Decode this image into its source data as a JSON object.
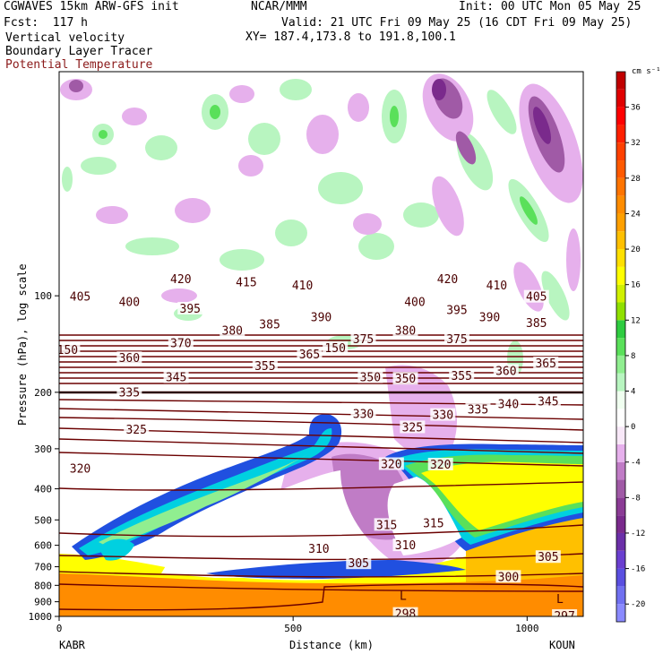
{
  "header": {
    "model": "CGWAVES 15km ARW-GFS init",
    "center": "NCAR/MMM",
    "init": "Init: 00 UTC Mon 05 May 25",
    "fcst": "Fcst:  117 h",
    "valid": "Valid: 21 UTC Fri 09 May 25 (16 CDT Fri 09 May 25)",
    "field1": "Vertical velocity",
    "field2": "Boundary Layer Tracer",
    "field3": "Potential Temperature",
    "field3_color": "#8b1a1a",
    "xy": "XY= 187.4,173.8 to 191.8,100.1"
  },
  "chart_data": {
    "type": "heatmap",
    "xlabel": "Distance (km)",
    "ylabel": "Pressure (hPa), log scale",
    "xlim": [
      0,
      1120
    ],
    "ylim": [
      1000,
      20
    ],
    "y_scale": "log",
    "x_ticks": [
      {
        "value": 0,
        "label": "0"
      },
      {
        "value": 500,
        "label": "500"
      },
      {
        "value": 1000,
        "label": "1000"
      }
    ],
    "y_ticks": [
      {
        "value": 1000,
        "label": "1000"
      },
      {
        "value": 900,
        "label": "900"
      },
      {
        "value": 800,
        "label": "800"
      },
      {
        "value": 700,
        "label": "700"
      },
      {
        "value": 600,
        "label": "600"
      },
      {
        "value": 500,
        "label": "500"
      },
      {
        "value": 400,
        "label": "400"
      },
      {
        "value": 300,
        "label": "300"
      },
      {
        "value": 200,
        "label": "200"
      },
      {
        "value": 100,
        "label": "100"
      }
    ],
    "x_endpoints": {
      "left": "KABR",
      "right": "KOUN"
    },
    "colorbar": {
      "units": "cm s⁻¹",
      "levels": [
        -22,
        -20,
        -18,
        -16,
        -14,
        -12,
        -10,
        -8,
        -6,
        -4,
        -2,
        0,
        2,
        4,
        6,
        8,
        10,
        12,
        14,
        16,
        18,
        20,
        22,
        24,
        26,
        28,
        30,
        32,
        34,
        36,
        38,
        40
      ],
      "labels": [
        "-20",
        "-16",
        "-12",
        "-8",
        "-4",
        "0",
        "4",
        "8",
        "12",
        "16",
        "20",
        "24",
        "28",
        "32",
        "36"
      ],
      "label_values": [
        -20,
        -16,
        -12,
        -8,
        -4,
        0,
        4,
        8,
        12,
        16,
        20,
        24,
        28,
        32,
        36
      ],
      "colors": [
        "#8a8aff",
        "#7070f0",
        "#5a4fe0",
        "#6a3fd0",
        "#6b2fa8",
        "#7a2a8c",
        "#8b3b95",
        "#a05aa6",
        "#c07cc6",
        "#e6b0ec",
        "#f8e8f8",
        "#ffffff",
        "#f0fff0",
        "#b8f5c0",
        "#90ee90",
        "#5ae05a",
        "#2ecc40",
        "#90e000",
        "#d0f000",
        "#ffff00",
        "#ffe000",
        "#ffc000",
        "#ffa000",
        "#ff8c00",
        "#ff7400",
        "#ff5a00",
        "#ff4000",
        "#ff2000",
        "#ff0000",
        "#e00000",
        "#c00000"
      ]
    },
    "theta_contours_K": [
      297,
      298,
      300,
      305,
      310,
      315,
      320,
      325,
      330,
      335,
      340,
      345,
      350,
      355,
      360,
      365,
      370,
      375,
      380,
      385,
      390,
      395,
      400,
      405,
      410,
      415,
      420
    ],
    "theta_labels": [
      {
        "text": "420",
        "x": 260,
        "p": 89
      },
      {
        "text": "415",
        "x": 400,
        "p": 91
      },
      {
        "text": "410",
        "x": 520,
        "p": 93
      },
      {
        "text": "420",
        "x": 830,
        "p": 89
      },
      {
        "text": "410",
        "x": 935,
        "p": 93
      },
      {
        "text": "405",
        "x": 45,
        "p": 101
      },
      {
        "text": "400",
        "x": 150,
        "p": 105
      },
      {
        "text": "395",
        "x": 280,
        "p": 110
      },
      {
        "text": "400",
        "x": 760,
        "p": 105
      },
      {
        "text": "395",
        "x": 850,
        "p": 111
      },
      {
        "text": "405",
        "x": 1020,
        "p": 101
      },
      {
        "text": "390",
        "x": 920,
        "p": 117
      },
      {
        "text": "385",
        "x": 1020,
        "p": 122
      },
      {
        "text": "390",
        "x": 560,
        "p": 117
      },
      {
        "text": "385",
        "x": 450,
        "p": 123
      },
      {
        "text": "380",
        "x": 370,
        "p": 129
      },
      {
        "text": "380",
        "x": 740,
        "p": 129
      },
      {
        "text": "375",
        "x": 650,
        "p": 137
      },
      {
        "text": "375",
        "x": 850,
        "p": 137
      },
      {
        "text": "370",
        "x": 260,
        "p": 141
      },
      {
        "text": "150",
        "x": 18,
        "p": 148
      },
      {
        "text": "365",
        "x": 1040,
        "p": 163
      },
      {
        "text": "365",
        "x": 535,
        "p": 153
      },
      {
        "text": "150",
        "x": 590,
        "p": 146
      },
      {
        "text": "360",
        "x": 150,
        "p": 157
      },
      {
        "text": "360",
        "x": 955,
        "p": 172
      },
      {
        "text": "355",
        "x": 440,
        "p": 166
      },
      {
        "text": "355",
        "x": 860,
        "p": 178
      },
      {
        "text": "345",
        "x": 250,
        "p": 180
      },
      {
        "text": "350",
        "x": 665,
        "p": 180
      },
      {
        "text": "350",
        "x": 740,
        "p": 182
      },
      {
        "text": "345",
        "x": 1045,
        "p": 214
      },
      {
        "text": "340",
        "x": 960,
        "p": 218
      },
      {
        "text": "335",
        "x": 150,
        "p": 201
      },
      {
        "text": "335",
        "x": 895,
        "p": 227
      },
      {
        "text": "330",
        "x": 650,
        "p": 234
      },
      {
        "text": "330",
        "x": 820,
        "p": 236
      },
      {
        "text": "325",
        "x": 165,
        "p": 262
      },
      {
        "text": "325",
        "x": 755,
        "p": 258
      },
      {
        "text": "320",
        "x": 45,
        "p": 347
      },
      {
        "text": "320",
        "x": 710,
        "p": 336
      },
      {
        "text": "320",
        "x": 815,
        "p": 337
      },
      {
        "text": "315",
        "x": 700,
        "p": 520
      },
      {
        "text": "315",
        "x": 800,
        "p": 513
      },
      {
        "text": "310",
        "x": 555,
        "p": 618
      },
      {
        "text": "310",
        "x": 740,
        "p": 602
      },
      {
        "text": "305",
        "x": 640,
        "p": 685
      },
      {
        "text": "305",
        "x": 1045,
        "p": 655
      },
      {
        "text": "300",
        "x": 960,
        "p": 755
      },
      {
        "text": "298",
        "x": 740,
        "p": 985
      },
      {
        "text": "297",
        "x": 1080,
        "p": 1000
      }
    ],
    "markers": [
      {
        "text": "L",
        "x": 735,
        "p": 860
      },
      {
        "text": "L",
        "x": 1070,
        "p": 880
      }
    ],
    "features": {
      "boundary_layer_tracer": "high values (orange) near surface below ~800 hPa; elevated mixed-layer plume (blue outline, white/yellow interior) extending from ~650 hPa at 150 km up to ~200 hPa near 560 km and to ~250 hPa across 700-1120 km",
      "vertical_velocity": "gravity-wave couplets (green ascent / purple descent) above ~100 hPa; broad weak descent (pink) in 300-700 hPa between 450 and 800 km"
    }
  }
}
